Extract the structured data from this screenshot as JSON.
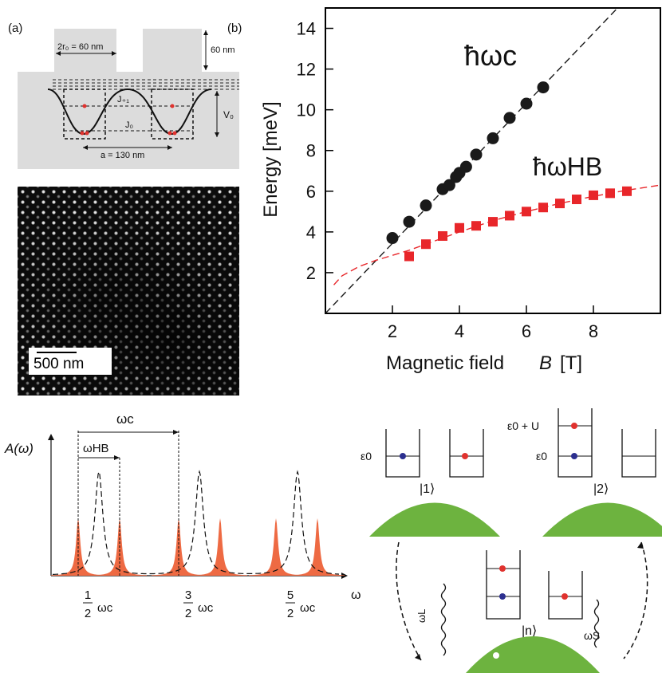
{
  "panel_a_label": "(a)",
  "panel_b_label": "(b)",
  "schematic": {
    "r0_label": "2r₀ = 60 nm",
    "height_label": "60 nm",
    "v0_label": "V₀",
    "j_pm1_label": "J₊₁",
    "j0_label": "J₀",
    "a_label": "a = 130 nm"
  },
  "micrograph": {
    "scale_label": "500 nm"
  },
  "chart_data": {
    "type": "scatter",
    "xlabel_main": "Magnetic field",
    "xlabel_var": "B",
    "xlabel_unit": "[T]",
    "ylabel": "Energy [meV]",
    "xlim": [
      0,
      10
    ],
    "ylim": [
      0,
      15
    ],
    "xticks": [
      "2",
      "4",
      "6",
      "8"
    ],
    "yticks": [
      "2",
      "4",
      "6",
      "8",
      "10",
      "12",
      "14"
    ],
    "series": [
      {
        "name": "ħωc",
        "marker": "circle",
        "color": "#1a1a1a",
        "x": [
          2.0,
          2.5,
          3.0,
          3.5,
          3.7,
          3.9,
          4.0,
          4.2,
          4.5,
          5.0,
          5.5,
          6.0,
          6.5
        ],
        "y": [
          3.7,
          4.5,
          5.3,
          6.1,
          6.3,
          6.7,
          6.9,
          7.2,
          7.8,
          8.6,
          9.6,
          10.3,
          11.1
        ]
      },
      {
        "name": "ħωHB",
        "marker": "square",
        "color": "#e8262a",
        "x": [
          2.5,
          3.0,
          3.5,
          4.0,
          4.5,
          5.0,
          5.5,
          6.0,
          6.5,
          7.0,
          7.5,
          8.0,
          8.5,
          9.0
        ],
        "y": [
          2.8,
          3.4,
          3.8,
          4.2,
          4.3,
          4.5,
          4.8,
          5.0,
          5.2,
          5.4,
          5.6,
          5.8,
          5.9,
          6.0
        ]
      }
    ],
    "fits": [
      {
        "color": "#1a1a1a",
        "style": "dashed",
        "x": [
          0,
          10
        ],
        "y": [
          0,
          17.2
        ]
      },
      {
        "color": "#e8262a",
        "style": "dashed",
        "x": [
          0.25,
          0.5,
          1,
          1.5,
          2,
          2.5,
          3,
          4,
          5,
          6,
          7,
          8,
          9,
          10
        ],
        "y": [
          1.4,
          1.85,
          2.3,
          2.6,
          2.85,
          3.1,
          3.4,
          4.0,
          4.55,
          5.0,
          5.4,
          5.75,
          6.05,
          6.3
        ]
      }
    ]
  },
  "spectrum": {
    "y_label": "A(ω)",
    "x_label": "ω",
    "omega_c_label": "ωc",
    "omega_hb_label": "ωHB",
    "tick_num": [
      "1",
      "3",
      "5"
    ],
    "tick_den": "2",
    "tick_unit": "ωc"
  },
  "levels": {
    "eps0": "ε0",
    "eps0_u": "ε0 + U",
    "state1": "|1⟩",
    "state2": "|2⟩",
    "state_n": "|n⟩",
    "omega_l": "ωL",
    "omega_s": "ωS"
  },
  "colors": {
    "blue_dot": "#2c2f8f",
    "red_dot": "#e0322e",
    "green_dome": "#6db33f",
    "orange_peak": "#ee6a43"
  }
}
